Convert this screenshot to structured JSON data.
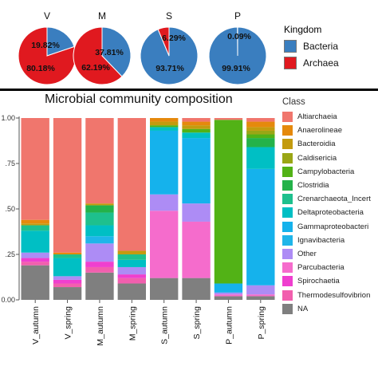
{
  "chart_data": [
    {
      "type": "pie",
      "legend_title": "Kingdom",
      "legend_position": "right",
      "series_names": [
        "Bacteria",
        "Archaea"
      ],
      "colors": [
        "#3a7ebf",
        "#e0191f"
      ],
      "pies": [
        {
          "name": "V",
          "values": [
            19.82,
            80.18
          ],
          "labels": [
            "19.82%",
            "80.18%"
          ]
        },
        {
          "name": "M",
          "values": [
            37.81,
            62.19
          ],
          "labels": [
            "37.81%",
            "62.19%"
          ]
        },
        {
          "name": "S",
          "values": [
            93.71,
            6.29
          ],
          "labels": [
            "93.71%",
            "6.29%"
          ]
        },
        {
          "name": "P",
          "values": [
            99.91,
            0.09
          ],
          "labels": [
            "99.91%",
            "0.09%"
          ]
        }
      ]
    },
    {
      "type": "bar",
      "stacked": true,
      "title": "Microbial community composition",
      "legend_title": "Class",
      "legend_position": "right",
      "ylim": [
        0,
        1
      ],
      "yticks": [
        "0.00",
        ".25",
        ".50",
        ".75",
        "1.00"
      ],
      "categories": [
        "V_autumn",
        "V_spring",
        "M_autumn",
        "M_spring",
        "S_autumn",
        "S_spring",
        "P_autumn",
        "P_spring"
      ],
      "series": [
        {
          "name": "NA",
          "color": "#7f7f7f",
          "values": [
            0.19,
            0.07,
            0.15,
            0.09,
            0.12,
            0.12,
            0.02,
            0.02
          ]
        },
        {
          "name": "Thermodesulfovibrionia",
          "color": "#f25fae",
          "values": [
            0.02,
            0.02,
            0.03,
            0.03,
            0.0,
            0.0,
            0.0,
            0.0
          ]
        },
        {
          "name": "Spirochaetia",
          "color": "#ef3fcf",
          "values": [
            0.02,
            0.02,
            0.03,
            0.02,
            0.0,
            0.0,
            0.0,
            0.0
          ]
        },
        {
          "name": "Parcubacteria",
          "color": "#f56ccc",
          "values": [
            0.0,
            0.0,
            0.0,
            0.0,
            0.37,
            0.31,
            0.01,
            0.01
          ]
        },
        {
          "name": "Other",
          "color": "#ad8cf5",
          "values": [
            0.03,
            0.02,
            0.1,
            0.04,
            0.09,
            0.1,
            0.01,
            0.05
          ]
        },
        {
          "name": "Ignavibacteria",
          "color": "#1fb5e9",
          "values": [
            0.0,
            0.0,
            0.04,
            0.0,
            0.0,
            0.0,
            0.0,
            0.0
          ]
        },
        {
          "name": "Gammaproteobacteria",
          "color": "#15b2ec",
          "values": [
            0.0,
            0.0,
            0.0,
            0.0,
            0.35,
            0.36,
            0.05,
            0.64
          ]
        },
        {
          "name": "Deltaproteobacteria",
          "color": "#00bfc4",
          "values": [
            0.12,
            0.1,
            0.06,
            0.04,
            0.02,
            0.03,
            0.0,
            0.12
          ]
        },
        {
          "name": "Crenarchaeota_Incertae_Sedis",
          "color": "#1ec08d",
          "values": [
            0.03,
            0.02,
            0.07,
            0.03,
            0.0,
            0.0,
            0.0,
            0.0
          ]
        },
        {
          "name": "Clostridia",
          "color": "#24b24a",
          "values": [
            0.0,
            0.0,
            0.04,
            0.0,
            0.0,
            0.0,
            0.0,
            0.05
          ]
        },
        {
          "name": "Campylobacteria",
          "color": "#52b216",
          "values": [
            0.0,
            0.0,
            0.0,
            0.0,
            0.01,
            0.02,
            0.9,
            0.02
          ]
        },
        {
          "name": "Caldisericia",
          "color": "#9aa615",
          "values": [
            0.0,
            0.0,
            0.0,
            0.0,
            0.0,
            0.0,
            0.0,
            0.02
          ]
        },
        {
          "name": "Bacteroidia",
          "color": "#c39b0f",
          "values": [
            0.01,
            0.0,
            0.01,
            0.02,
            0.02,
            0.02,
            0.0,
            0.02
          ]
        },
        {
          "name": "Anaerolineae",
          "color": "#e5890c",
          "values": [
            0.02,
            0.01,
            0.0,
            0.0,
            0.02,
            0.02,
            0.0,
            0.03
          ]
        },
        {
          "name": "Altiarchaeia",
          "color": "#f0766d",
          "values": [
            0.56,
            0.74,
            0.47,
            0.73,
            0.0,
            0.02,
            0.01,
            0.02
          ]
        }
      ],
      "legend_entries": [
        "Altiarchaeia",
        "Anaerolineae",
        "Bacteroidia",
        "Caldisericia",
        "Campylobacteria",
        "Clostridia",
        "Crenarchaeota_Incert",
        "Deltaproteobacteria",
        "Gammaproteobacteri",
        "Ignavibacteria",
        "Other",
        "Parcubacteria",
        "Spirochaetia",
        "Thermodesulfovibrion",
        "NA"
      ],
      "legend_colors": [
        "#f0766d",
        "#e5890c",
        "#c39b0f",
        "#9aa615",
        "#52b216",
        "#24b24a",
        "#1ec08d",
        "#00bfc4",
        "#15b2ec",
        "#1fb5e9",
        "#ad8cf5",
        "#f56ccc",
        "#ef3fcf",
        "#f25fae",
        "#7f7f7f"
      ]
    }
  ]
}
